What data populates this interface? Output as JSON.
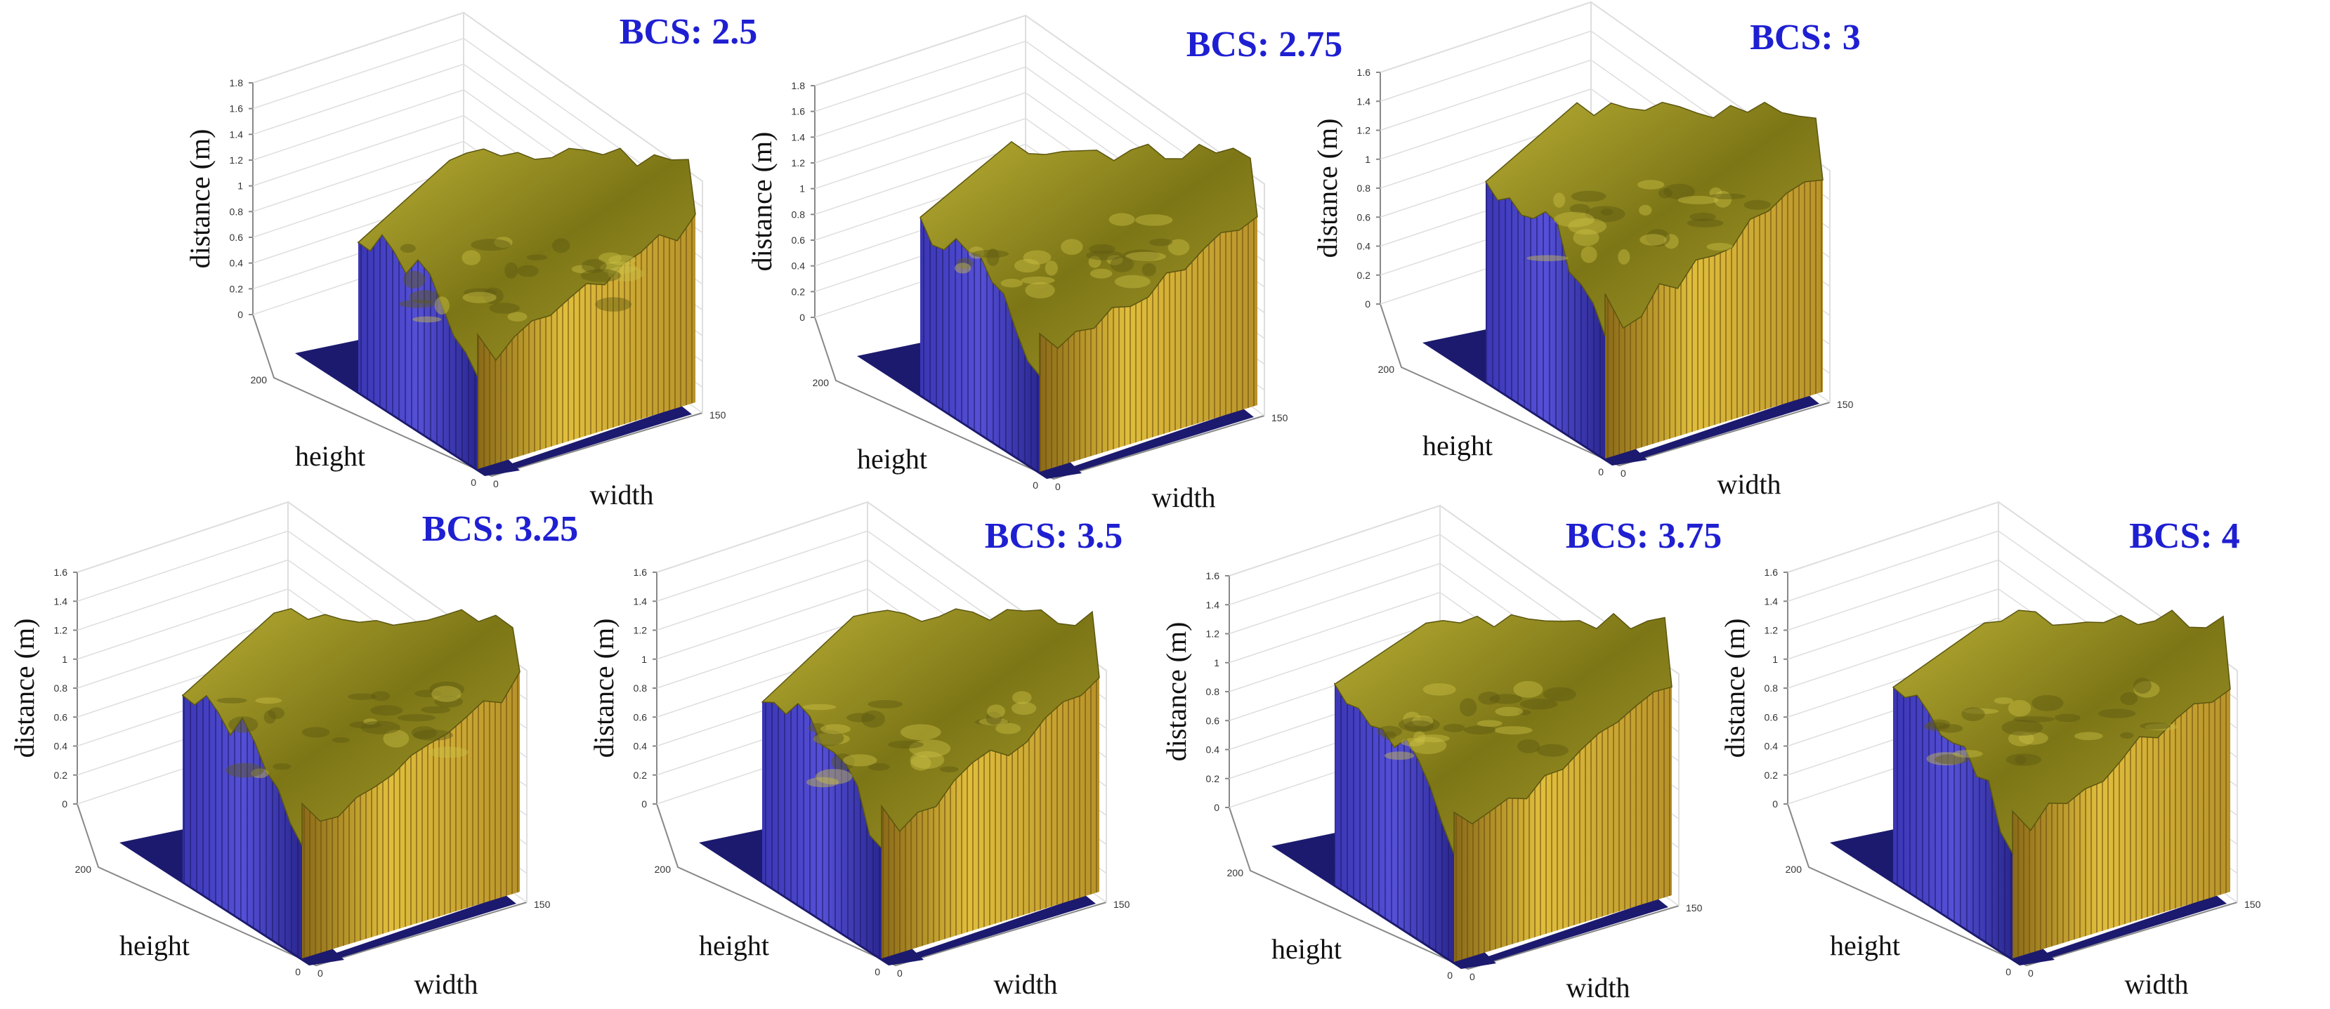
{
  "figure": {
    "panels": [
      {
        "title": "BCS: 2.5"
      },
      {
        "title": "BCS: 2.75"
      },
      {
        "title": "BCS: 3"
      },
      {
        "title": "BCS: 3.25"
      },
      {
        "title": "BCS: 3.5"
      },
      {
        "title": "BCS: 3.75"
      },
      {
        "title": "BCS: 4"
      }
    ]
  },
  "chart_data": [
    {
      "type": "surface",
      "title": "BCS: 2.5",
      "xlabel": "width",
      "ylabel": "height",
      "zlabel": "distance (m)",
      "x_ticks": [
        "0",
        "150"
      ],
      "y_ticks": [
        "0",
        "200"
      ],
      "z_ticks": [
        "0",
        "0.2",
        "0.4",
        "0.6",
        "0.8",
        "1",
        "1.2",
        "1.4",
        "1.6",
        "1.8"
      ],
      "zlim": [
        0,
        1.8
      ],
      "surface_height": 1.3
    },
    {
      "type": "surface",
      "title": "BCS: 2.75",
      "xlabel": "width",
      "ylabel": "height",
      "zlabel": "distance (m)",
      "x_ticks": [
        "0",
        "150"
      ],
      "y_ticks": [
        "0",
        "200"
      ],
      "z_ticks": [
        "0",
        "0.2",
        "0.4",
        "0.6",
        "0.8",
        "1",
        "1.2",
        "1.4",
        "1.6",
        "1.8"
      ],
      "zlim": [
        0,
        1.8
      ],
      "surface_height": 1.35
    },
    {
      "type": "surface",
      "title": "BCS: 3",
      "xlabel": "width",
      "ylabel": "height",
      "zlabel": "distance (m)",
      "x_ticks": [
        "0",
        "150"
      ],
      "y_ticks": [
        "0",
        "200"
      ],
      "z_ticks": [
        "0",
        "0.2",
        "0.4",
        "0.6",
        "0.8",
        "1",
        "1.2",
        "1.4",
        "1.6"
      ],
      "zlim": [
        0,
        1.6
      ],
      "surface_height": 1.4
    },
    {
      "type": "surface",
      "title": "BCS: 3.25",
      "xlabel": "width",
      "ylabel": "height",
      "zlabel": "distance (m)",
      "x_ticks": [
        "0",
        "150"
      ],
      "y_ticks": [
        "0",
        "200"
      ],
      "z_ticks": [
        "0",
        "0.2",
        "0.4",
        "0.6",
        "0.8",
        "1",
        "1.2",
        "1.4",
        "1.6"
      ],
      "zlim": [
        0,
        1.6
      ],
      "surface_height": 1.35
    },
    {
      "type": "surface",
      "title": "BCS: 3.5",
      "xlabel": "width",
      "ylabel": "height",
      "zlabel": "distance (m)",
      "x_ticks": [
        "0",
        "150"
      ],
      "y_ticks": [
        "0",
        "200"
      ],
      "z_ticks": [
        "0",
        "0.2",
        "0.4",
        "0.6",
        "0.8",
        "1",
        "1.2",
        "1.4",
        "1.6"
      ],
      "zlim": [
        0,
        1.6
      ],
      "surface_height": 1.35
    },
    {
      "type": "surface",
      "title": "BCS: 3.75",
      "xlabel": "width",
      "ylabel": "height",
      "zlabel": "distance (m)",
      "x_ticks": [
        "0",
        "150"
      ],
      "y_ticks": [
        "0",
        "200"
      ],
      "z_ticks": [
        "0",
        "0.2",
        "0.4",
        "0.6",
        "0.8",
        "1",
        "1.2",
        "1.4",
        "1.6"
      ],
      "zlim": [
        0,
        1.6
      ],
      "surface_height": 1.35
    },
    {
      "type": "surface",
      "title": "BCS: 4",
      "xlabel": "width",
      "ylabel": "height",
      "zlabel": "distance (m)",
      "x_ticks": [
        "0",
        "150"
      ],
      "y_ticks": [
        "0",
        "200"
      ],
      "z_ticks": [
        "0",
        "0.2",
        "0.4",
        "0.6",
        "0.8",
        "1",
        "1.2",
        "1.4",
        "1.6"
      ],
      "zlim": [
        0,
        1.6
      ],
      "surface_height": 1.35
    }
  ],
  "colors": {
    "title": "#1f1fd2",
    "surface_top": "#8f8a1c",
    "surface_top_light": "#c2b83a",
    "wall_blue": "#2e2a9a",
    "wall_blue_light": "#4a46c8",
    "wall_yellow": "#c9a62a",
    "floor": "#1c1a6e"
  }
}
